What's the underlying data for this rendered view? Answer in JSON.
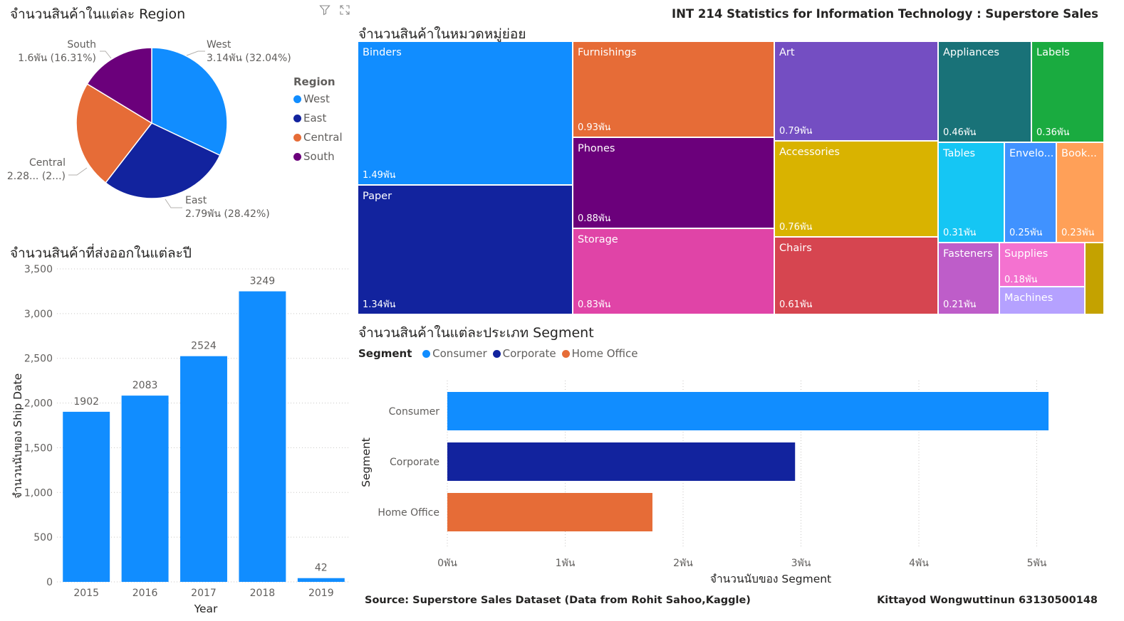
{
  "header": {
    "title": "INT 214 Statistics for Information Technology : Superstore Sales",
    "source": "Source: Superstore Sales Dataset (Data from Rohit Sahoo,Kaggle)",
    "author": "Kittayod Wongwuttinun 63130500148"
  },
  "visual_icons": [
    "filter-icon",
    "focus-mode-icon"
  ],
  "chart_data": [
    {
      "type": "pie",
      "title": "จำนวนสินค้าในแต่ละ Region",
      "legend_title": "Region",
      "legend_position": "right",
      "slices": [
        {
          "name": "West",
          "label": "West",
          "value_label": "3.14พัน (32.04%)",
          "value": 3140,
          "percent": 32.04,
          "color": "#118DFF"
        },
        {
          "name": "East",
          "label": "East",
          "value_label": "2.79พัน (28.42%)",
          "value": 2790,
          "percent": 28.42,
          "color": "#12239E"
        },
        {
          "name": "Central",
          "label": "Central",
          "value_label": "2.28... (2...)",
          "value": 2280,
          "percent": 23.23,
          "color": "#E66C37"
        },
        {
          "name": "South",
          "label": "South",
          "value_label": "1.6พัน (16.31%)",
          "value": 1600,
          "percent": 16.31,
          "color": "#6B007B"
        }
      ]
    },
    {
      "type": "bar",
      "title": "จำนวนสินค้าที่ส่งออกในแต่ละปี",
      "xlabel": "Year",
      "ylabel": "จำนวนนับของ Ship Date",
      "categories": [
        "2015",
        "2016",
        "2017",
        "2018",
        "2019"
      ],
      "values": [
        1902,
        2083,
        2524,
        3249,
        42
      ],
      "ylim": [
        0,
        3500
      ],
      "yticks": [
        0,
        500,
        1000,
        1500,
        2000,
        2500,
        3000,
        3500
      ],
      "ytick_labels": [
        "0",
        "500",
        "1,000",
        "1,500",
        "2,000",
        "2,500",
        "3,000",
        "3,500"
      ],
      "grid": true,
      "color": "#118DFF"
    },
    {
      "type": "treemap",
      "title": "จำนวนสินค้าในหมวดหมู่ย่อย",
      "items": [
        {
          "name": "Binders",
          "value": 1490,
          "label": "1.49พัน",
          "color": "#118DFF"
        },
        {
          "name": "Paper",
          "value": 1340,
          "label": "1.34พัน",
          "color": "#12239E"
        },
        {
          "name": "Furnishings",
          "value": 930,
          "label": "0.93พัน",
          "color": "#E66C37"
        },
        {
          "name": "Phones",
          "value": 880,
          "label": "0.88พัน",
          "color": "#6B007B"
        },
        {
          "name": "Storage",
          "value": 830,
          "label": "0.83พัน",
          "color": "#E044A7"
        },
        {
          "name": "Art",
          "value": 790,
          "label": "0.79พัน",
          "color": "#744EC2"
        },
        {
          "name": "Accessories",
          "value": 760,
          "label": "0.76พัน",
          "color": "#D9B300"
        },
        {
          "name": "Chairs",
          "value": 610,
          "label": "0.61พัน",
          "color": "#D64550"
        },
        {
          "name": "Appliances",
          "value": 460,
          "label": "0.46พัน",
          "color": "#197278"
        },
        {
          "name": "Labels",
          "value": 360,
          "label": "0.36พัน",
          "color": "#1AAB40"
        },
        {
          "name": "Tables",
          "value": 310,
          "label": "0.31พัน",
          "color": "#15C6F4"
        },
        {
          "name": "Envelo...",
          "value": 250,
          "label": "0.25พัน",
          "color": "#4092FF"
        },
        {
          "name": "Book...",
          "value": 230,
          "label": "0.23พัน",
          "color": "#FFA058"
        },
        {
          "name": "Fasteners",
          "value": 210,
          "label": "0.21พัน",
          "color": "#BE5DC9"
        },
        {
          "name": "Supplies",
          "value": 180,
          "label": "0.18พัน",
          "color": "#F472D0"
        },
        {
          "name": "Machines",
          "value": null,
          "label": "",
          "color": "#B5A1FF"
        },
        {
          "name": "",
          "value": null,
          "label": "",
          "color": "#C4A200"
        }
      ]
    },
    {
      "type": "bar",
      "orientation": "horizontal",
      "title": "จำนวนสินค้าในแต่ละประเภท Segment",
      "legend_title": "Segment",
      "legend_position": "top-left",
      "xlabel": "จำนวนนับของ Segment",
      "ylabel": "Segment",
      "categories": [
        "Consumer",
        "Corporate",
        "Home Office"
      ],
      "values": [
        5100,
        2950,
        1740
      ],
      "colors": [
        "#118DFF",
        "#12239E",
        "#E66C37"
      ],
      "xlim": [
        0,
        5500
      ],
      "xticks": [
        0,
        1000,
        2000,
        3000,
        4000,
        5000
      ],
      "xtick_labels": [
        "0พัน",
        "1พัน",
        "2พัน",
        "3พัน",
        "4พัน",
        "5พัน"
      ],
      "grid": true
    }
  ]
}
